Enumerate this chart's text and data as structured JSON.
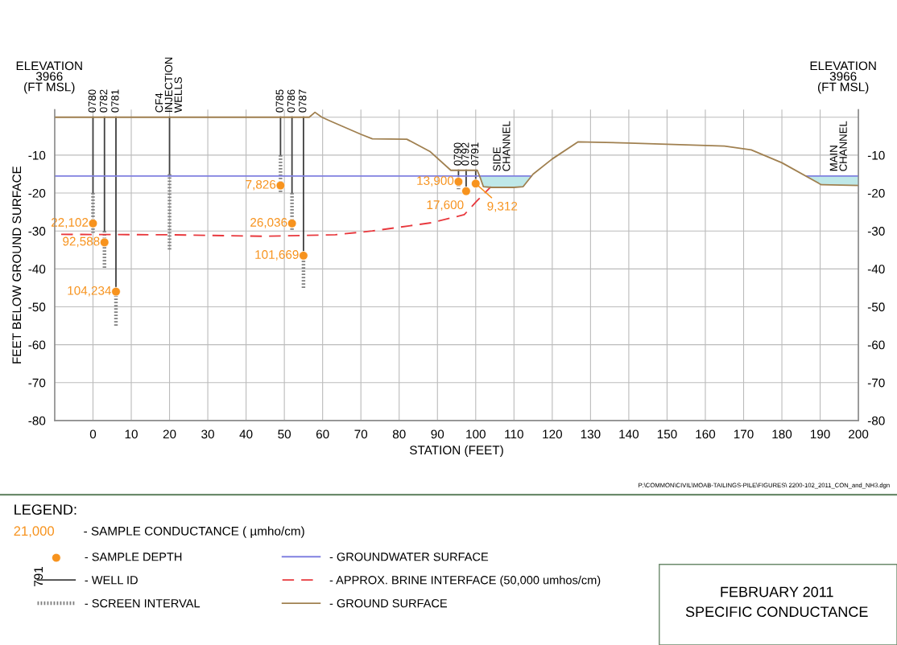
{
  "chart_data": {
    "type": "line",
    "title": "FEBRUARY 2011\nSPECIFIC CONDUCTANCE",
    "xlabel": "STATION (FEET)",
    "ylabel": "FEET BELOW GROUND SURFACE",
    "legend_title": "LEGEND:",
    "xlim": [
      -10,
      200
    ],
    "xticks": [
      0,
      10,
      20,
      30,
      40,
      50,
      60,
      70,
      80,
      90,
      100,
      110,
      120,
      130,
      140,
      150,
      160,
      170,
      180,
      190,
      200
    ],
    "ylim": [
      -80,
      2
    ],
    "yticks": [
      {
        "value": 0,
        "label": null
      },
      -10,
      -20,
      -30,
      -40,
      -50,
      -60,
      -70,
      -80
    ],
    "y2lim": [
      -80,
      2
    ],
    "y2ticks": [
      -10,
      -20,
      -30,
      -40,
      -50,
      -60,
      -70,
      -80
    ],
    "grid": true,
    "legend": "bottom",
    "series": [
      {
        "type": "scatter",
        "name": "- SAMPLE DEPTH",
        "color": "#f7931e",
        "x": [
          0,
          3,
          6,
          49,
          52,
          55,
          95.5,
          97.5,
          100
        ],
        "values": [
          -28,
          -33,
          -46,
          -18,
          -28,
          -36.5,
          -17,
          -19.5,
          -17.5
        ]
      },
      {
        "name": "- WELL ID",
        "color": "#404040",
        "x": [
          0,
          0,
          null,
          3,
          3,
          null,
          6,
          6,
          null,
          20,
          20,
          null,
          49,
          49,
          null,
          52,
          52,
          null,
          55,
          55,
          null,
          95.5,
          95.5,
          null,
          97.5,
          97.5,
          null,
          100,
          100
        ],
        "values": [
          0,
          -20,
          null,
          0,
          -30,
          null,
          0,
          -47,
          null,
          0,
          -15,
          null,
          0,
          -10,
          null,
          0,
          -20,
          null,
          0,
          -37,
          null,
          -14,
          -17,
          null,
          -14,
          -18.5,
          null,
          -14,
          -16.5
        ]
      },
      {
        "name": "- SCREEN INTERVAL",
        "color": "#808080",
        "line_style": "dotted",
        "x": [
          0,
          0,
          null,
          3,
          3,
          null,
          6,
          6,
          null,
          20,
          20,
          null,
          49,
          49,
          null,
          52,
          52,
          null,
          55,
          55,
          null,
          95.5,
          95.5,
          null,
          97.5,
          97.5,
          null,
          100,
          100
        ],
        "values": [
          -20,
          -30.5,
          null,
          -30,
          -40,
          null,
          -47,
          -55,
          null,
          -15,
          -35,
          null,
          -10,
          -20,
          null,
          -20,
          -30,
          null,
          -37,
          -45.5,
          null,
          -17,
          -19,
          null,
          -18.5,
          -19.5,
          null,
          -16.5,
          -17.5
        ]
      },
      {
        "name": "- GROUNDWATER SURFACE",
        "color": "#8080e0",
        "x": [
          -10,
          101.2,
          102,
          104,
          110,
          112.4,
          114.5,
          150,
          186.5,
          190.3,
          200
        ],
        "values": [
          -15.5,
          -15.5,
          -15.5,
          -15.5,
          -15.5,
          -15.5,
          -15.5,
          null,
          -15.5,
          -15.5,
          -15.5
        ],
        "lower": [
          null,
          -16,
          -18.3,
          -18.5,
          -18.5,
          -18.3,
          -15.5,
          null,
          -15.5,
          -17.8,
          -18
        ],
        "upper": [
          null,
          -15.5,
          -15.5,
          -15.5,
          -15.5,
          -15.5,
          -15.5,
          null,
          -15.5,
          -15.5,
          -15.5
        ]
      },
      {
        "name": "- APPROX. BRINE INTERFACE (50,000 umhos/cm)",
        "color": "#e8383d",
        "line_style": "dashed",
        "x": [
          -8.3,
          20,
          45,
          63.3,
          73,
          88.6,
          97,
          100.4,
          104
        ],
        "values": [
          -30.9,
          -31,
          -31.4,
          -31,
          -30,
          -27.8,
          -25.7,
          -22,
          -18.3
        ]
      },
      {
        "name": "- GROUND SURFACE",
        "color": "#a08050",
        "x": [
          -10,
          56.5,
          58,
          59.8,
          62,
          70,
          73,
          82,
          88,
          93.5,
          100.4,
          101.2,
          102,
          104,
          110,
          112.4,
          115,
          120,
          126.7,
          140,
          165,
          172,
          180,
          190.3,
          200
        ],
        "values": [
          0,
          0,
          1.3,
          0,
          -1,
          -4.5,
          -5.7,
          -5.8,
          -9,
          -14,
          -14,
          -16,
          -18.3,
          -18.5,
          -18.5,
          -18.3,
          -15,
          -11,
          -6.5,
          -6.8,
          -7.6,
          -8.6,
          -12,
          -17.8,
          -18
        ]
      }
    ],
    "annotations": [
      "21,000",
      "- SAMPLE CONDUCTANCE ( µmho/cm)",
      "791",
      "P:\\COMMON\\CIVIL\\MOAB-TAILINGS-PILE\\FIGURES\\ 2200-102_2011_CON_and_NH3.dgn",
      "ELEVATION\n3966\n(FT MSL)",
      "ELEVATION\n3966\n(FT MSL)",
      {
        "text": "22,102",
        "x": 0,
        "y": -28
      },
      {
        "text": "92,588",
        "x": 3,
        "y": -33
      },
      {
        "text": "104,234",
        "x": 6,
        "y": -46
      },
      {
        "text": "7,826",
        "x": 49,
        "y": -18
      },
      {
        "text": "26,036",
        "x": 52,
        "y": -28
      },
      {
        "text": "101,669",
        "x": 55,
        "y": -36.5
      },
      {
        "text": "13,900",
        "x": 95.5,
        "y": -17
      },
      {
        "text": "17,600",
        "x": 97.5,
        "y": -19.5
      },
      {
        "text": "9,312",
        "x": 100,
        "y": -17.5
      },
      {
        "text": "0780",
        "x": 0,
        "y": 0
      },
      {
        "text": "0782",
        "x": 3,
        "y": 0
      },
      {
        "text": "0781",
        "x": 6,
        "y": 0
      },
      {
        "text": "CF4\nINJECTION\nWELLS",
        "x": 20,
        "y": 0
      },
      {
        "text": "0785",
        "x": 49,
        "y": 0
      },
      {
        "text": "0786",
        "x": 52,
        "y": 0
      },
      {
        "text": "0787",
        "x": 55,
        "y": 0
      },
      {
        "text": "0790",
        "x": 95.5,
        "y": -14
      },
      {
        "text": "0792",
        "x": 97.5,
        "y": -14
      },
      {
        "text": "0791",
        "x": 100,
        "y": -14
      },
      {
        "text": "SIDE\nCHANNEL",
        "x": 107,
        "y": -15.5
      },
      {
        "text": "MAIN\nCHANNEL",
        "x": 195,
        "y": -15.5
      }
    ]
  }
}
